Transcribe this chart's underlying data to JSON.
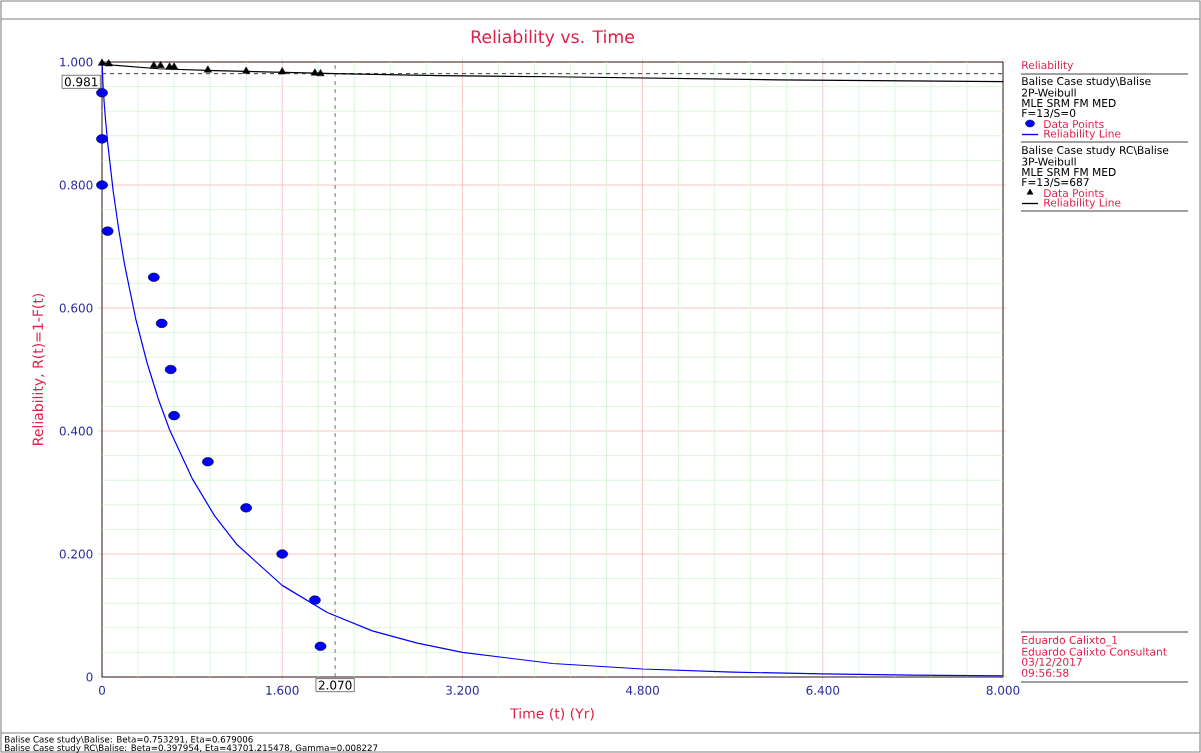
{
  "chart_data": {
    "type": "scatter",
    "title": "Reliability vs. Time",
    "xlabel": "Time (t) (Yr)",
    "ylabel": "Reliability, R(t)=1-F(t)",
    "legend_title": "Reliability",
    "xlim": [
      0,
      8
    ],
    "ylim": [
      0,
      1
    ],
    "xticks": [
      0,
      {
        "value": 0.32,
        "label": null
      },
      {
        "value": 0.64,
        "label": null
      },
      {
        "value": 0.96,
        "label": null
      },
      {
        "value": 1.28,
        "label": null
      },
      {
        "value": 1.6,
        "label": "1.600"
      },
      {
        "value": 1.92,
        "label": null
      },
      {
        "value": 2.24,
        "label": null
      },
      {
        "value": 2.56,
        "label": null
      },
      {
        "value": 2.88,
        "label": null
      },
      {
        "value": 3.2,
        "label": "3.200"
      },
      {
        "value": 3.52,
        "label": null
      },
      {
        "value": 3.84,
        "label": null
      },
      {
        "value": 4.16,
        "label": null
      },
      {
        "value": 4.48,
        "label": null
      },
      {
        "value": 4.8,
        "label": "4.800"
      },
      {
        "value": 5.12,
        "label": null
      },
      {
        "value": 5.44,
        "label": null
      },
      {
        "value": 5.76,
        "label": null
      },
      {
        "value": 6.08,
        "label": null
      },
      {
        "value": 6.4,
        "label": "6.400"
      },
      {
        "value": 6.72,
        "label": null
      },
      {
        "value": 7.04,
        "label": null
      },
      {
        "value": 7.36,
        "label": null
      },
      {
        "value": 7.68,
        "label": null
      },
      {
        "value": 8,
        "label": "8.000"
      }
    ],
    "yticks": [
      0,
      {
        "value": 0.04,
        "label": null
      },
      {
        "value": 0.08,
        "label": null
      },
      {
        "value": 0.12,
        "label": null
      },
      {
        "value": 0.16,
        "label": null
      },
      {
        "value": 0.2,
        "label": "0.200"
      },
      {
        "value": 0.24,
        "label": null
      },
      {
        "value": 0.28,
        "label": null
      },
      {
        "value": 0.32,
        "label": null
      },
      {
        "value": 0.36,
        "label": null
      },
      {
        "value": 0.4,
        "label": "0.400"
      },
      {
        "value": 0.44,
        "label": null
      },
      {
        "value": 0.48,
        "label": null
      },
      {
        "value": 0.52,
        "label": null
      },
      {
        "value": 0.56,
        "label": null
      },
      {
        "value": 0.6,
        "label": "0.600"
      },
      {
        "value": 0.64,
        "label": null
      },
      {
        "value": 0.68,
        "label": null
      },
      {
        "value": 0.72,
        "label": null
      },
      {
        "value": 0.76,
        "label": null
      },
      {
        "value": 0.8,
        "label": "0.800"
      },
      {
        "value": 0.84,
        "label": null
      },
      {
        "value": 0.88,
        "label": null
      },
      {
        "value": 0.92,
        "label": null
      },
      {
        "value": 0.96,
        "label": null
      },
      {
        "value": 1,
        "label": "1.000"
      }
    ],
    "grid": true,
    "legend": "right",
    "series": [
      {
        "name": "Data Points",
        "marker": "circle",
        "color": "#0000ff",
        "x": [
          0,
          0,
          0,
          0.05,
          0.46,
          0.53,
          0.61,
          0.64,
          0.94,
          1.28,
          1.6,
          1.89,
          1.94
        ],
        "values": [
          0.95,
          0.875,
          0.8,
          0.725,
          0.65,
          0.575,
          0.5,
          0.425,
          0.35,
          0.275,
          0.2,
          0.125,
          0.05
        ]
      },
      {
        "name": "Reliability Line",
        "type": "line",
        "marker": "none",
        "color": "#0000ff",
        "x": [
          0,
          0.01,
          0.02,
          0.03,
          0.05,
          0.1,
          0.15,
          0.2,
          0.3,
          0.4,
          0.5,
          0.6,
          0.8,
          1.0,
          1.2,
          1.6,
          2.0,
          2.4,
          2.8,
          3.2,
          4.0,
          4.8,
          5.6,
          6.4,
          7.2,
          8.0
        ],
        "values": [
          1,
          0.959,
          0.932,
          0.909,
          0.869,
          0.789,
          0.726,
          0.671,
          0.582,
          0.511,
          0.452,
          0.402,
          0.323,
          0.262,
          0.215,
          0.149,
          0.105,
          0.075,
          0.055,
          0.04,
          0.022,
          0.013,
          0.008,
          0.005,
          0.003,
          0.002
        ]
      },
      {
        "name": "Data Points",
        "marker": "triangle",
        "color": "#000000",
        "x": [
          0,
          0.06,
          0.46,
          0.52,
          0.6,
          0.64,
          0.94,
          1.28,
          1.6,
          1.89,
          1.94
        ],
        "values": [
          0.998,
          0.997,
          0.994,
          0.994,
          0.992,
          0.992,
          0.987,
          0.985,
          0.984,
          0.982,
          0.981
        ]
      },
      {
        "name": "Reliability Line",
        "type": "line",
        "marker": "none",
        "color": "#000000",
        "x": [
          0,
          0.008,
          0.02,
          0.1,
          0.5,
          1.0,
          2.07,
          3.0,
          4.0,
          6.0,
          8.0
        ],
        "values": [
          1,
          1,
          0.998,
          0.995,
          0.989,
          0.986,
          0.981,
          0.978,
          0.976,
          0.971,
          0.968
        ]
      }
    ],
    "ref_lines": [
      {
        "axis": "y",
        "value": 0.981,
        "label": "0.981",
        "line_style": "dashed",
        "color": "#000000"
      },
      {
        "axis": "x",
        "value": 2.07,
        "label": "2.070",
        "line_style": "dashed",
        "color": "#555555"
      }
    ],
    "annotations": [
      "Balise Case study\\Balise",
      "2P-Weibull",
      "MLE SRM FM MED",
      "F=13/S=0",
      "Balise Case study RC\\Balise",
      "3P-Weibull",
      "MLE SRM FM MED",
      "F=13/S=687",
      "Eduardo Calixto_1",
      "Eduardo Calixto Consultant",
      "03/12/2017",
      "09:56:58",
      "Balise Case study\\Balise: Beta=0.753291, Eta=0.679006",
      "Balise Case study RC\\Balise: Beta=0.397954, Eta=43701.215478, Gamma=0.008227"
    ]
  }
}
